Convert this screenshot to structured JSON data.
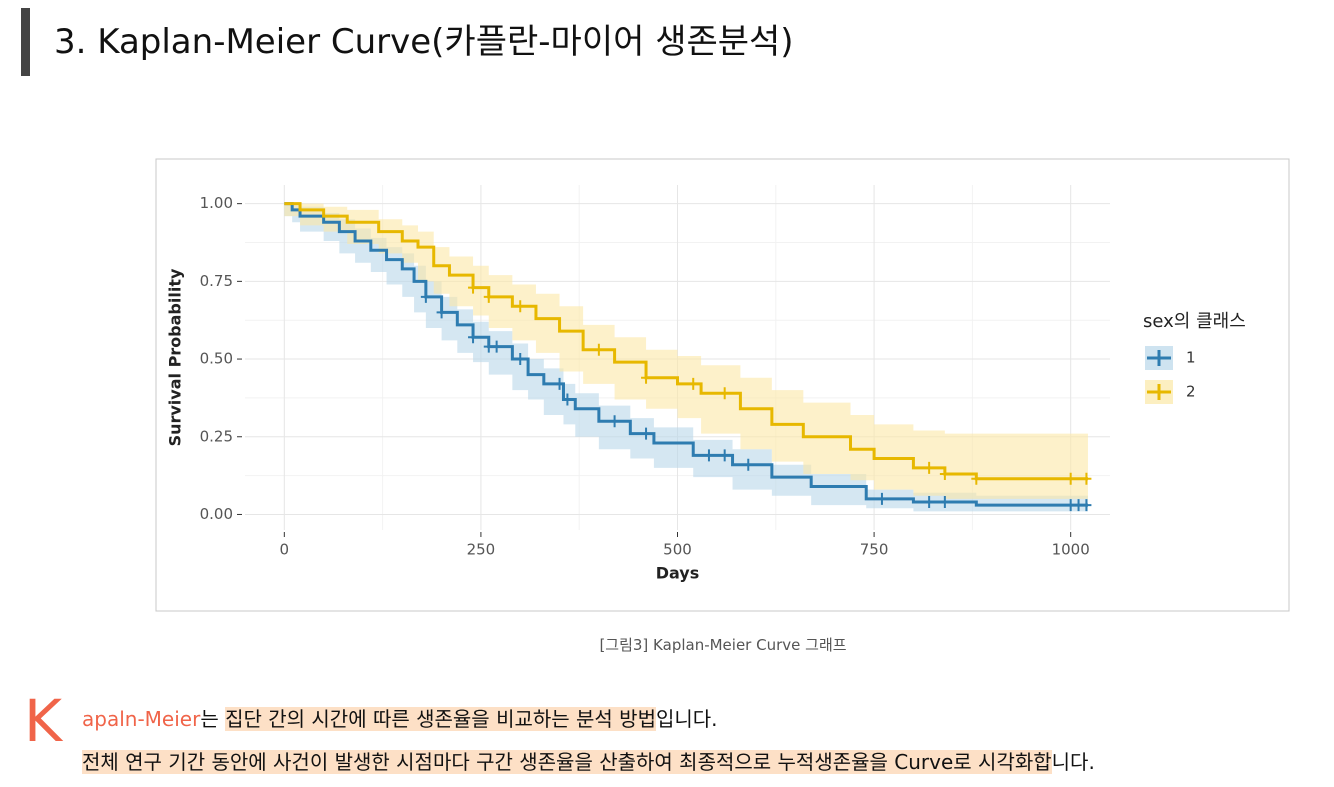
{
  "heading": "3. Kaplan-Meier Curve(카플란-마이어 생존분석)",
  "chart_data": {
    "type": "survival",
    "xlabel": "Days",
    "ylabel": "Survival Probability",
    "xlim": [
      -50,
      1050
    ],
    "ylim": [
      -0.05,
      1.06
    ],
    "xticks": [
      0,
      250,
      500,
      750,
      1000
    ],
    "yticks": [
      {
        "value": 0,
        "label": "0.00"
      },
      {
        "value": 0.25,
        "label": "0.25"
      },
      {
        "value": 0.5,
        "label": "0.50"
      },
      {
        "value": 0.75,
        "label": "0.75"
      },
      {
        "value": 1,
        "label": "1.00"
      }
    ],
    "grid": true,
    "legend_title": "sex의 클래스",
    "legend": "right",
    "series": [
      {
        "name": "1",
        "color": "#2e7cb0",
        "band_color": "#b9d7ea",
        "x": [
          0,
          10,
          20,
          50,
          70,
          90,
          110,
          130,
          150,
          165,
          180,
          200,
          220,
          240,
          260,
          290,
          310,
          330,
          355,
          370,
          400,
          440,
          470,
          520,
          570,
          620,
          670,
          740,
          800,
          880,
          1022
        ],
        "values": [
          1.0,
          0.98,
          0.96,
          0.94,
          0.91,
          0.88,
          0.85,
          0.82,
          0.79,
          0.75,
          0.7,
          0.65,
          0.61,
          0.57,
          0.54,
          0.5,
          0.45,
          0.42,
          0.37,
          0.34,
          0.3,
          0.26,
          0.23,
          0.19,
          0.16,
          0.12,
          0.09,
          0.05,
          0.04,
          0.03,
          0.03
        ],
        "lower": [
          1.0,
          0.96,
          0.94,
          0.91,
          0.88,
          0.84,
          0.81,
          0.78,
          0.74,
          0.7,
          0.65,
          0.6,
          0.56,
          0.52,
          0.49,
          0.45,
          0.4,
          0.37,
          0.32,
          0.29,
          0.25,
          0.21,
          0.18,
          0.15,
          0.12,
          0.08,
          0.06,
          0.03,
          0.02,
          0.01,
          0.01
        ],
        "upper": [
          1.0,
          1.0,
          0.99,
          0.97,
          0.95,
          0.92,
          0.89,
          0.86,
          0.84,
          0.8,
          0.75,
          0.7,
          0.66,
          0.62,
          0.59,
          0.55,
          0.5,
          0.47,
          0.42,
          0.39,
          0.35,
          0.31,
          0.28,
          0.24,
          0.21,
          0.16,
          0.13,
          0.08,
          0.07,
          0.06,
          0.06
        ],
        "censored": [
          180,
          200,
          240,
          260,
          270,
          300,
          350,
          360,
          420,
          460,
          540,
          560,
          590,
          760,
          820,
          840,
          1000,
          1010,
          1020
        ]
      },
      {
        "name": "2",
        "color": "#e7b800",
        "band_color": "#fbe8a6",
        "x": [
          0,
          20,
          50,
          80,
          120,
          150,
          170,
          190,
          210,
          240,
          260,
          290,
          320,
          350,
          380,
          420,
          460,
          500,
          530,
          580,
          620,
          660,
          720,
          750,
          800,
          840,
          880,
          1022
        ],
        "values": [
          1.0,
          0.98,
          0.96,
          0.94,
          0.91,
          0.88,
          0.86,
          0.8,
          0.77,
          0.73,
          0.7,
          0.67,
          0.63,
          0.59,
          0.53,
          0.49,
          0.44,
          0.42,
          0.39,
          0.34,
          0.29,
          0.25,
          0.21,
          0.18,
          0.15,
          0.13,
          0.115,
          0.115
        ],
        "lower": [
          1.0,
          0.96,
          0.93,
          0.91,
          0.87,
          0.84,
          0.81,
          0.75,
          0.71,
          0.67,
          0.64,
          0.6,
          0.56,
          0.52,
          0.46,
          0.42,
          0.37,
          0.34,
          0.31,
          0.26,
          0.21,
          0.17,
          0.13,
          0.11,
          0.08,
          0.06,
          0.05,
          0.05
        ],
        "upper": [
          1.0,
          1.0,
          0.99,
          0.98,
          0.95,
          0.93,
          0.91,
          0.86,
          0.83,
          0.8,
          0.77,
          0.74,
          0.71,
          0.67,
          0.61,
          0.57,
          0.53,
          0.51,
          0.48,
          0.44,
          0.4,
          0.36,
          0.32,
          0.29,
          0.27,
          0.26,
          0.26,
          0.26
        ],
        "censored": [
          240,
          260,
          300,
          400,
          460,
          520,
          560,
          820,
          840,
          880,
          1000,
          1020
        ]
      }
    ]
  },
  "caption": "[그림3] Kaplan-Meier Curve 그래프",
  "paragraph": {
    "drop_cap": "K",
    "term": "apaln-Meier",
    "line1": [
      "는",
      "집단 간의 시간에 따른 생존율을 비교하는 분석 방법",
      "입니다."
    ],
    "line2": [
      "전체 연구 기간 동안에 사건이 발생한 시점마다 구간 생존율을 산출하여 최종적으로 누적생존율을 Curve로 시각화합",
      "니다."
    ]
  }
}
